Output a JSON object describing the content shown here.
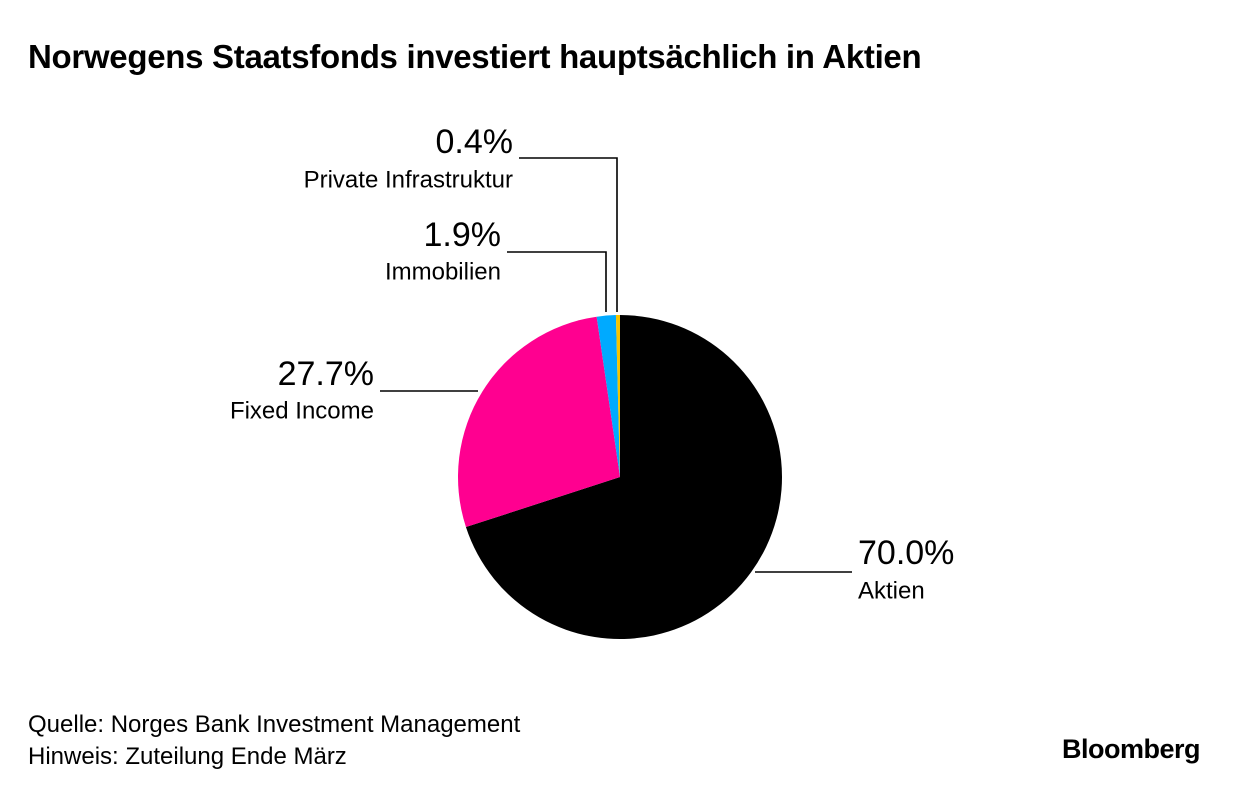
{
  "title": "Norwegens Staatsfonds investiert hauptsächlich in Aktien",
  "footer": {
    "source": "Quelle: Norges Bank Investment Management",
    "note": "Hinweis: Zuteilung Ende März"
  },
  "brand": "Bloomberg",
  "chart_data": {
    "type": "pie",
    "title": "Norwegens Staatsfonds investiert hauptsächlich in Aktien",
    "slices": [
      {
        "label": "Aktien",
        "value": 70.0,
        "value_label": "70.0%",
        "color": "#000000"
      },
      {
        "label": "Fixed Income",
        "value": 27.7,
        "value_label": "27.7%",
        "color": "#ff0090"
      },
      {
        "label": "Immobilien",
        "value": 1.9,
        "value_label": "1.9%",
        "color": "#00aaff"
      },
      {
        "label": "Private Infrastruktur",
        "value": 0.4,
        "value_label": "0.4%",
        "color": "#f5c400"
      }
    ],
    "start": "12 o'clock",
    "direction": "clockwise",
    "labels": "external with leader lines"
  }
}
